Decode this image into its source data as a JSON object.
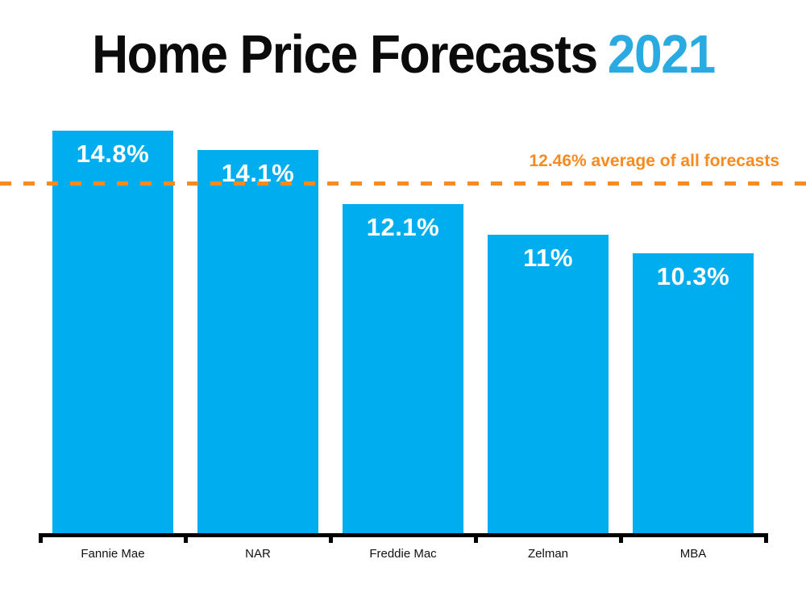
{
  "title": {
    "main": "Home Price Forecasts",
    "year": "2021"
  },
  "colors": {
    "bar_blue": "#00AEEF",
    "title_year_blue": "#29ABE2",
    "accent_orange": "#F78B1F",
    "title_black": "#0B0B0B",
    "axis_black": "#000000",
    "value_label_white": "#FFFFFF",
    "background": "#FFFFFF"
  },
  "chart_data": {
    "type": "bar",
    "title": "Home Price Forecasts 2021",
    "categories": [
      "Fannie Mae",
      "NAR",
      "Freddie Mac",
      "Zelman",
      "MBA"
    ],
    "values": [
      14.8,
      14.1,
      12.1,
      11,
      10.3
    ],
    "value_labels": [
      "14.8%",
      "14.1%",
      "12.1%",
      "11%",
      "10.3%"
    ],
    "average_line": {
      "value": 12.46,
      "label": "12.46% average of all forecasts",
      "style": "dashed",
      "color": "#F78B1F"
    },
    "xlabel": "",
    "ylabel": "",
    "ylim": [
      0,
      15.5
    ],
    "unit": "%",
    "grid": false,
    "legend_position": "none",
    "y_axis_ticks_visible": false,
    "x_axis_visible": true
  }
}
